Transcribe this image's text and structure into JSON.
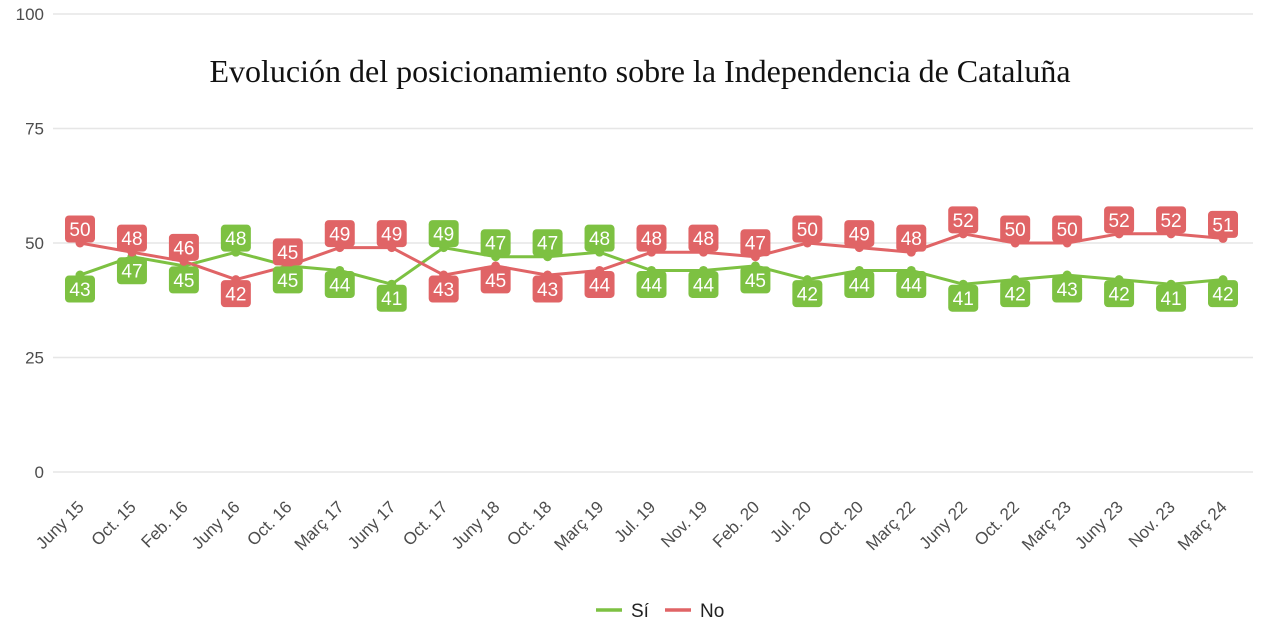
{
  "chart_data": {
    "type": "line",
    "title": "Evolución del posicionamiento sobre la Independencia de Cataluña",
    "xlabel": "",
    "ylabel": "",
    "categories": [
      "Juny 15",
      "Oct. 15",
      "Feb. 16",
      "Juny 16",
      "Oct. 16",
      "Març 17",
      "Juny 17",
      "Oct. 17",
      "Juny 18",
      "Oct. 18",
      "Març 19",
      "Jul. 19",
      "Nov. 19",
      "Feb. 20",
      "Jul. 20",
      "Oct. 20",
      "Març 22",
      "Juny 22",
      "Oct. 22",
      "Març 23",
      "Juny 23",
      "Nov. 23",
      "Març 24"
    ],
    "ylim": [
      0,
      100
    ],
    "yticks": [
      0,
      25,
      50,
      75,
      100
    ],
    "grid": true,
    "legend_position": "bottom",
    "series": [
      {
        "name": "Sí",
        "color": "#7dc142",
        "values": [
          43,
          47,
          45,
          48,
          45,
          44,
          41,
          49,
          47,
          47,
          48,
          44,
          44,
          45,
          42,
          44,
          44,
          41,
          42,
          43,
          42,
          41,
          42
        ]
      },
      {
        "name": "No",
        "color": "#e06466",
        "values": [
          50,
          48,
          46,
          42,
          45,
          49,
          49,
          43,
          45,
          43,
          44,
          48,
          48,
          47,
          50,
          49,
          48,
          52,
          50,
          50,
          52,
          52,
          51
        ]
      }
    ]
  }
}
